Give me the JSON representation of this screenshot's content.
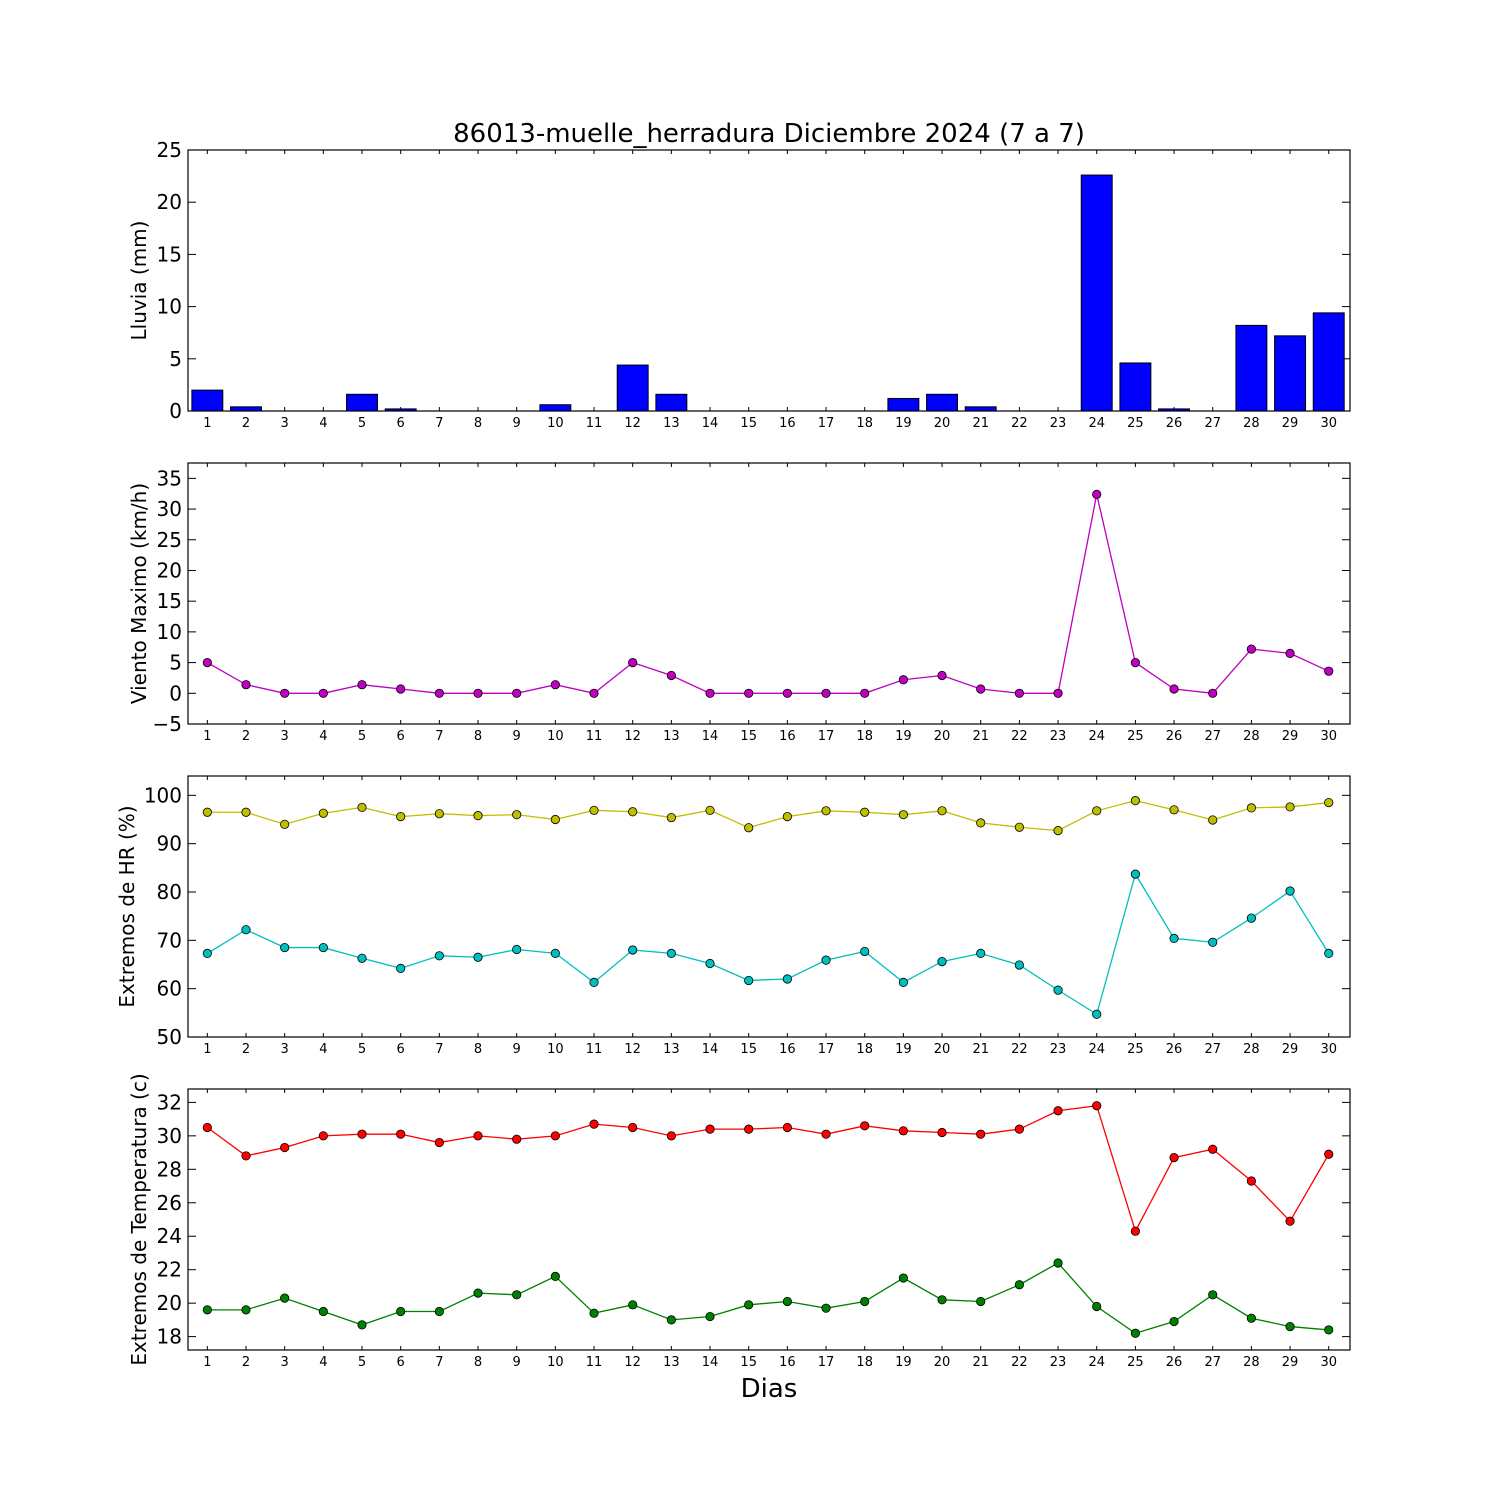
{
  "figure": {
    "title": "86013-muelle_herradura Diciembre 2024  (7 a 7)",
    "xlabel": "Dias"
  },
  "chart_data": [
    {
      "type": "bar",
      "ylabel": "Lluvia (mm)",
      "ylim": [
        0,
        25
      ],
      "yticks": [
        0,
        5,
        10,
        15,
        20,
        25
      ],
      "categories": [
        "1",
        "2",
        "3",
        "4",
        "5",
        "6",
        "7",
        "8",
        "9",
        "10",
        "11",
        "12",
        "13",
        "14",
        "15",
        "16",
        "17",
        "18",
        "19",
        "20",
        "21",
        "22",
        "23",
        "24",
        "25",
        "26",
        "27",
        "28",
        "29",
        "30"
      ],
      "series": [
        {
          "values": [
            2.0,
            0.4,
            0,
            0,
            1.6,
            0.2,
            0,
            0,
            0,
            0.6,
            0,
            4.4,
            1.6,
            0,
            0,
            0,
            0,
            0,
            1.2,
            1.6,
            0.4,
            0,
            0,
            22.6,
            4.6,
            0.2,
            0,
            8.2,
            7.2,
            9.4
          ],
          "color": "#0000ff"
        }
      ]
    },
    {
      "type": "line",
      "ylabel": "Viento Maximo (km/h)",
      "ylim": [
        -5,
        37.5
      ],
      "yticks": [
        -5,
        0,
        5,
        10,
        15,
        20,
        25,
        30,
        35
      ],
      "categories": [
        "1",
        "2",
        "3",
        "4",
        "5",
        "6",
        "7",
        "8",
        "9",
        "10",
        "11",
        "12",
        "13",
        "14",
        "15",
        "16",
        "17",
        "18",
        "19",
        "20",
        "21",
        "22",
        "23",
        "24",
        "25",
        "26",
        "27",
        "28",
        "29",
        "30"
      ],
      "series": [
        {
          "values": [
            5.0,
            1.4,
            0,
            0,
            1.4,
            0.7,
            0,
            0,
            0,
            1.4,
            0,
            5.0,
            2.9,
            0,
            0,
            0,
            0,
            0,
            2.2,
            2.9,
            0.7,
            0,
            0,
            32.4,
            5.0,
            0.7,
            0,
            7.2,
            6.5,
            3.6
          ],
          "color": "#bf00bf"
        }
      ]
    },
    {
      "type": "line",
      "ylabel": "Extremos de HR (%)",
      "ylim": [
        50,
        104
      ],
      "yticks": [
        50,
        60,
        70,
        80,
        90,
        100
      ],
      "categories": [
        "1",
        "2",
        "3",
        "4",
        "5",
        "6",
        "7",
        "8",
        "9",
        "10",
        "11",
        "12",
        "13",
        "14",
        "15",
        "16",
        "17",
        "18",
        "19",
        "20",
        "21",
        "22",
        "23",
        "24",
        "25",
        "26",
        "27",
        "28",
        "29",
        "30"
      ],
      "series": [
        {
          "values": [
            96.5,
            96.5,
            94,
            96.3,
            97.5,
            95.6,
            96.2,
            95.8,
            96,
            95,
            96.9,
            96.6,
            95.4,
            96.9,
            93.3,
            95.6,
            96.8,
            96.5,
            96,
            96.8,
            94.3,
            93.4,
            92.7,
            96.8,
            98.9,
            97,
            94.9,
            97.4,
            97.6,
            98.5
          ],
          "color": "#bfbf00"
        },
        {
          "values": [
            67.3,
            72.2,
            68.5,
            68.5,
            66.3,
            64.2,
            66.8,
            66.5,
            68.1,
            67.3,
            61.3,
            68,
            67.3,
            65.2,
            61.7,
            62,
            65.9,
            67.7,
            61.3,
            65.6,
            67.3,
            64.9,
            59.7,
            54.7,
            83.7,
            70.4,
            69.6,
            74.6,
            80.2,
            67.3
          ],
          "color": "#00bfbf"
        }
      ]
    },
    {
      "type": "line",
      "ylabel": "Extremos de Temperatura (c)",
      "ylim": [
        17.2,
        32.8
      ],
      "yticks": [
        18,
        20,
        22,
        24,
        26,
        28,
        30,
        32
      ],
      "categories": [
        "1",
        "2",
        "3",
        "4",
        "5",
        "6",
        "7",
        "8",
        "9",
        "10",
        "11",
        "12",
        "13",
        "14",
        "15",
        "16",
        "17",
        "18",
        "19",
        "20",
        "21",
        "22",
        "23",
        "24",
        "25",
        "26",
        "27",
        "28",
        "29",
        "30"
      ],
      "series": [
        {
          "values": [
            30.5,
            28.8,
            29.3,
            30,
            30.1,
            30.1,
            29.6,
            30,
            29.8,
            30,
            30.7,
            30.5,
            30,
            30.4,
            30.4,
            30.5,
            30.1,
            30.6,
            30.3,
            30.2,
            30.1,
            30.4,
            31.5,
            31.8,
            24.3,
            28.7,
            29.2,
            27.3,
            24.9,
            28.9
          ],
          "color": "#ff0000"
        },
        {
          "values": [
            19.6,
            19.6,
            20.3,
            19.5,
            18.7,
            19.5,
            19.5,
            20.6,
            20.5,
            21.6,
            19.4,
            19.9,
            19,
            19.2,
            19.9,
            20.1,
            19.7,
            20.1,
            21.5,
            20.2,
            20.1,
            21.1,
            22.4,
            19.8,
            18.2,
            18.9,
            20.5,
            19.1,
            18.6,
            18.4
          ],
          "color": "#008000"
        }
      ]
    }
  ]
}
